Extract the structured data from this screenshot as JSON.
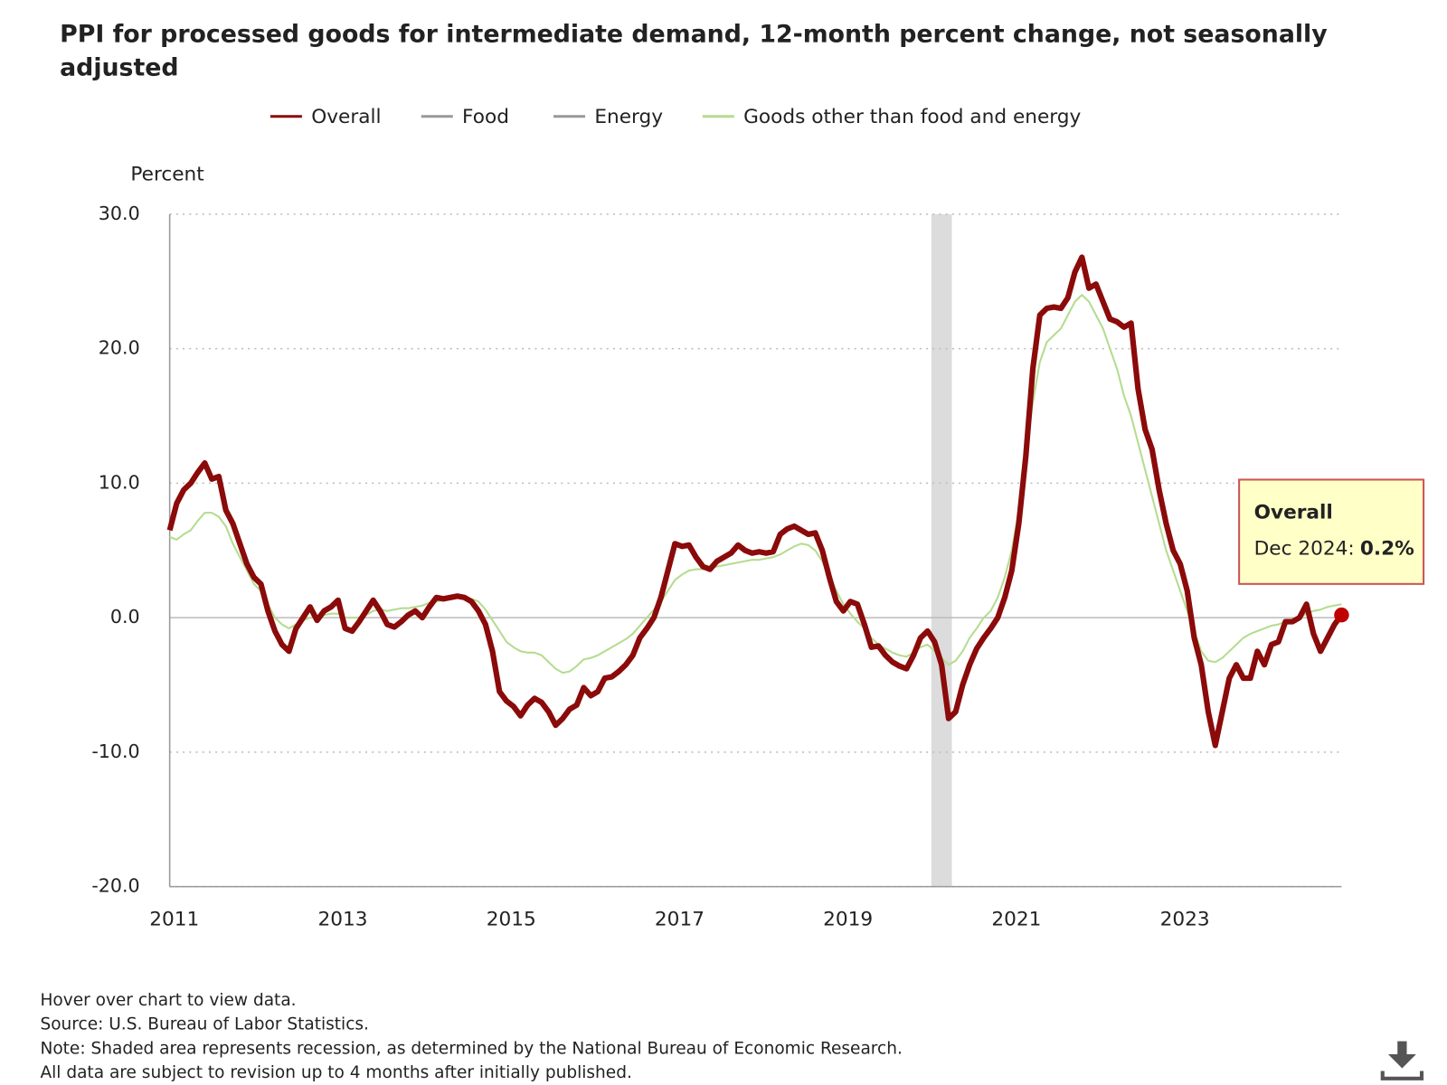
{
  "chart_data": {
    "type": "line",
    "title": "PPI for processed goods for intermediate demand, 12-month percent change, not seasonally",
    "title_line2": "adjusted",
    "y_axis_label": "Percent",
    "x": [
      "2011-01",
      "2011-02",
      "2011-03",
      "2011-04",
      "2011-05",
      "2011-06",
      "2011-07",
      "2011-08",
      "2011-09",
      "2011-10",
      "2011-11",
      "2011-12",
      "2012-01",
      "2012-02",
      "2012-03",
      "2012-04",
      "2012-05",
      "2012-06",
      "2012-07",
      "2012-08",
      "2012-09",
      "2012-10",
      "2012-11",
      "2012-12",
      "2013-01",
      "2013-02",
      "2013-03",
      "2013-04",
      "2013-05",
      "2013-06",
      "2013-07",
      "2013-08",
      "2013-09",
      "2013-10",
      "2013-11",
      "2013-12",
      "2014-01",
      "2014-02",
      "2014-03",
      "2014-04",
      "2014-05",
      "2014-06",
      "2014-07",
      "2014-08",
      "2014-09",
      "2014-10",
      "2014-11",
      "2014-12",
      "2015-01",
      "2015-02",
      "2015-03",
      "2015-04",
      "2015-05",
      "2015-06",
      "2015-07",
      "2015-08",
      "2015-09",
      "2015-10",
      "2015-11",
      "2015-12",
      "2016-01",
      "2016-02",
      "2016-03",
      "2016-04",
      "2016-05",
      "2016-06",
      "2016-07",
      "2016-08",
      "2016-09",
      "2016-10",
      "2016-11",
      "2016-12",
      "2017-01",
      "2017-02",
      "2017-03",
      "2017-04",
      "2017-05",
      "2017-06",
      "2017-07",
      "2017-08",
      "2017-09",
      "2017-10",
      "2017-11",
      "2017-12",
      "2018-01",
      "2018-02",
      "2018-03",
      "2018-04",
      "2018-05",
      "2018-06",
      "2018-07",
      "2018-08",
      "2018-09",
      "2018-10",
      "2018-11",
      "2018-12",
      "2019-01",
      "2019-02",
      "2019-03",
      "2019-04",
      "2019-05",
      "2019-06",
      "2019-07",
      "2019-08",
      "2019-09",
      "2019-10",
      "2019-11",
      "2019-12",
      "2020-01",
      "2020-02",
      "2020-03",
      "2020-04",
      "2020-05",
      "2020-06",
      "2020-07",
      "2020-08",
      "2020-09",
      "2020-10",
      "2020-11",
      "2020-12",
      "2021-01",
      "2021-02",
      "2021-03",
      "2021-04",
      "2021-05",
      "2021-06",
      "2021-07",
      "2021-08",
      "2021-09",
      "2021-10",
      "2021-11",
      "2021-12",
      "2022-01",
      "2022-02",
      "2022-03",
      "2022-04",
      "2022-05",
      "2022-06",
      "2022-07",
      "2022-08",
      "2022-09",
      "2022-10",
      "2022-11",
      "2022-12",
      "2023-01",
      "2023-02",
      "2023-03",
      "2023-04",
      "2023-05",
      "2023-06",
      "2023-07",
      "2023-08",
      "2023-09",
      "2023-10",
      "2023-11",
      "2023-12",
      "2024-01",
      "2024-02",
      "2024-03",
      "2024-04",
      "2024-05",
      "2024-06",
      "2024-07",
      "2024-08",
      "2024-09",
      "2024-10",
      "2024-11",
      "2024-12"
    ],
    "series": [
      {
        "name": "Overall",
        "color": "#8b0a0a",
        "visible": true,
        "values": [
          6.5,
          8.5,
          9.5,
          10,
          10.8,
          11.5,
          10.3,
          10.5,
          8,
          7,
          5.5,
          4,
          3,
          2.5,
          0.5,
          -1,
          -2,
          -2.5,
          -0.8,
          0,
          0.8,
          -0.2,
          0.5,
          0.8,
          1.3,
          -0.8,
          -1,
          -0.3,
          0.5,
          1.3,
          0.5,
          -0.5,
          -0.7,
          -0.3,
          0.2,
          0.5,
          0,
          0.8,
          1.5,
          1.4,
          1.5,
          1.6,
          1.5,
          1.2,
          0.5,
          -0.5,
          -2.5,
          -5.5,
          -6.2,
          -6.6,
          -7.3,
          -6.5,
          -6,
          -6.3,
          -7,
          -8,
          -7.5,
          -6.8,
          -6.5,
          -5.2,
          -5.8,
          -5.5,
          -4.5,
          -4.4,
          -4,
          -3.5,
          -2.8,
          -1.5,
          -0.8,
          0,
          1.5,
          3.5,
          5.5,
          5.3,
          5.4,
          4.5,
          3.8,
          3.6,
          4.2,
          4.5,
          4.8,
          5.4,
          5,
          4.8,
          4.9,
          4.8,
          4.9,
          6.2,
          6.6,
          6.8,
          6.5,
          6.2,
          6.3,
          5,
          3,
          1.2,
          0.5,
          1.2,
          1,
          -0.5,
          -2.2,
          -2.1,
          -2.8,
          -3.3,
          -3.6,
          -3.8,
          -2.8,
          -1.5,
          -1,
          -1.8,
          -3.5,
          -7.5,
          -7,
          -5,
          -3.5,
          -2.3,
          -1.5,
          -0.8,
          0,
          1.5,
          3.5,
          7,
          12,
          18.5,
          22.5,
          23,
          23.1,
          23,
          23.8,
          25.7,
          26.8,
          24.5,
          24.8,
          23.5,
          22.2,
          22,
          21.6,
          21.9,
          17,
          14,
          12.5,
          9.5,
          7,
          5,
          4,
          2,
          -1.5,
          -3.5,
          -7,
          -9.5,
          -7,
          -4.5,
          -3.5,
          -4.5,
          -4.5,
          -2.5,
          -3.5,
          -2,
          -1.8,
          -0.3,
          -0.3,
          0,
          1,
          -1.2,
          -2.5,
          -1.5,
          -0.5,
          0.2
        ]
      },
      {
        "name": "Food",
        "color": "#999999",
        "visible": false
      },
      {
        "name": "Energy",
        "color": "#999999",
        "visible": false
      },
      {
        "name": "Goods other than food and energy",
        "color": "#b5dc8f",
        "visible": true,
        "values": [
          6,
          5.8,
          6.2,
          6.5,
          7.2,
          7.8,
          7.8,
          7.5,
          6.8,
          5.5,
          4.5,
          3.5,
          2.5,
          2,
          1,
          0,
          -0.5,
          -0.8,
          -0.5,
          -0.2,
          0,
          0,
          0.2,
          0.3,
          0.3,
          0,
          0,
          0,
          0.2,
          0.5,
          0.6,
          0.5,
          0.6,
          0.7,
          0.7,
          0.8,
          0.9,
          1.1,
          1.2,
          1.3,
          1.4,
          1.5,
          1.5,
          1.4,
          1.2,
          0.6,
          -0.2,
          -1,
          -1.8,
          -2.2,
          -2.5,
          -2.6,
          -2.6,
          -2.8,
          -3.3,
          -3.8,
          -4.1,
          -4,
          -3.6,
          -3.1,
          -3,
          -2.8,
          -2.5,
          -2.2,
          -1.9,
          -1.6,
          -1.2,
          -0.6,
          0,
          0.6,
          1.2,
          2,
          2.8,
          3.2,
          3.5,
          3.6,
          3.6,
          3.7,
          3.8,
          3.9,
          4,
          4.1,
          4.2,
          4.3,
          4.3,
          4.4,
          4.5,
          4.7,
          5,
          5.3,
          5.5,
          5.4,
          5,
          4.2,
          3,
          2,
          1,
          0.3,
          -0.3,
          -0.8,
          -1.5,
          -2,
          -2.3,
          -2.6,
          -2.8,
          -2.9,
          -2.6,
          -2.2,
          -2,
          -2.5,
          -3,
          -3.5,
          -3.2,
          -2.5,
          -1.5,
          -0.8,
          0,
          0.5,
          1.5,
          3,
          5,
          8,
          12,
          16,
          19,
          20.5,
          21,
          21.5,
          22.5,
          23.5,
          24,
          23.5,
          22.5,
          21.5,
          20,
          18.5,
          16.5,
          15,
          13,
          11,
          9,
          7,
          5,
          3.5,
          2,
          0.5,
          -1,
          -2.5,
          -3.2,
          -3.3,
          -3,
          -2.5,
          -2,
          -1.5,
          -1.2,
          -1,
          -0.8,
          -0.6,
          -0.5,
          -0.3,
          -0.2,
          0,
          0.3,
          0.5,
          0.6,
          0.8,
          0.9,
          1
        ]
      }
    ],
    "ylim": [
      -20,
      30
    ],
    "yticks": [
      {
        "value": -20,
        "label": "-20.0"
      },
      {
        "value": -10,
        "label": "-10.0"
      },
      {
        "value": 0,
        "label": "0.0"
      },
      {
        "value": 10,
        "label": "10.0"
      },
      {
        "value": 20,
        "label": "20.0"
      },
      {
        "value": 30,
        "label": "30.0"
      }
    ],
    "xticks": [
      "2011",
      "2013",
      "2015",
      "2017",
      "2019",
      "2021",
      "2023"
    ],
    "recession": [
      "2020-02",
      "2020-04"
    ],
    "grid": true,
    "tooltip": {
      "date": "Dec 2024:",
      "value_label": "0.2%"
    },
    "notes": [
      "Hover over chart to view data.",
      "Source: U.S. Bureau of Labor Statistics.",
      "Note: Shaded area represents recession, as determined by the National Bureau of Economic Research.",
      "All data are subject to revision up to 4 months after initially published."
    ]
  }
}
